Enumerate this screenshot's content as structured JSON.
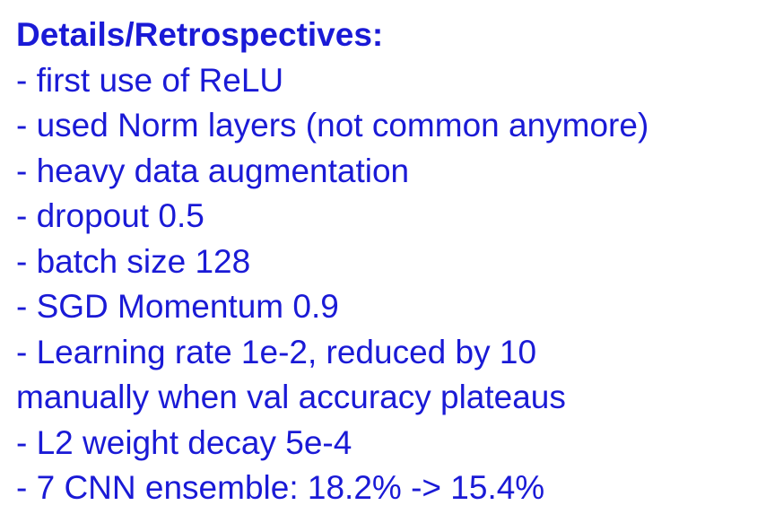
{
  "title": "Details/Retrospectives:",
  "lines": [
    "- first use of ReLU",
    "- used Norm layers (not common anymore)",
    "- heavy data augmentation",
    "- dropout 0.5",
    "- batch size 128",
    "- SGD Momentum 0.9",
    "- Learning rate 1e-2, reduced by 10",
    "manually when val accuracy plateaus",
    "- L2 weight decay 5e-4",
    "- 7 CNN ensemble: 18.2% -> 15.4%"
  ],
  "colors": {
    "text": "#1a1ad6",
    "background": "#ffffff"
  }
}
